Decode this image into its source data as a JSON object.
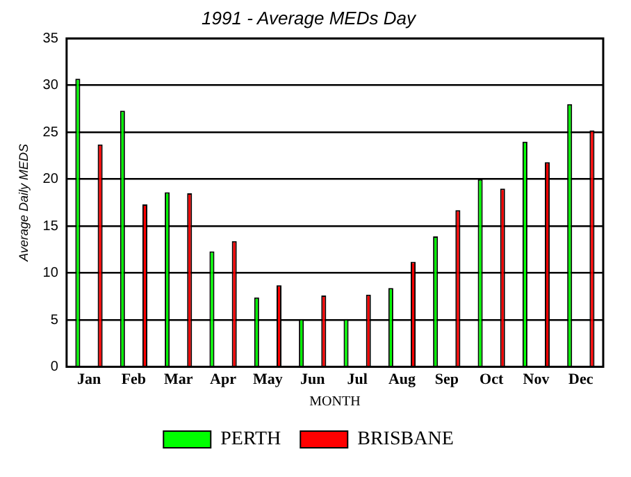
{
  "chart_data": {
    "type": "bar",
    "title": "1991 - Average MEDs Day",
    "xlabel": "MONTH",
    "ylabel": "Average Daily MEDS",
    "categories": [
      "Jan",
      "Feb",
      "Mar",
      "Apr",
      "May",
      "Jun",
      "Jul",
      "Aug",
      "Sep",
      "Oct",
      "Nov",
      "Dec"
    ],
    "series": [
      {
        "name": "PERTH",
        "color": "#00ff00",
        "values": [
          30.7,
          27.3,
          18.6,
          12.3,
          7.4,
          5.1,
          5.1,
          8.4,
          13.9,
          20,
          24,
          28
        ]
      },
      {
        "name": "BRISBANE",
        "color": "#ff0000",
        "values": [
          23.7,
          17.3,
          18.5,
          13.4,
          8.7,
          7.6,
          7.7,
          11.2,
          16.7,
          19,
          21.8,
          25.2
        ]
      }
    ],
    "ylim": [
      0,
      35
    ],
    "yticks": [
      0,
      5,
      10,
      15,
      20,
      25,
      30,
      35
    ],
    "grid": "y",
    "legend": "bottom"
  }
}
